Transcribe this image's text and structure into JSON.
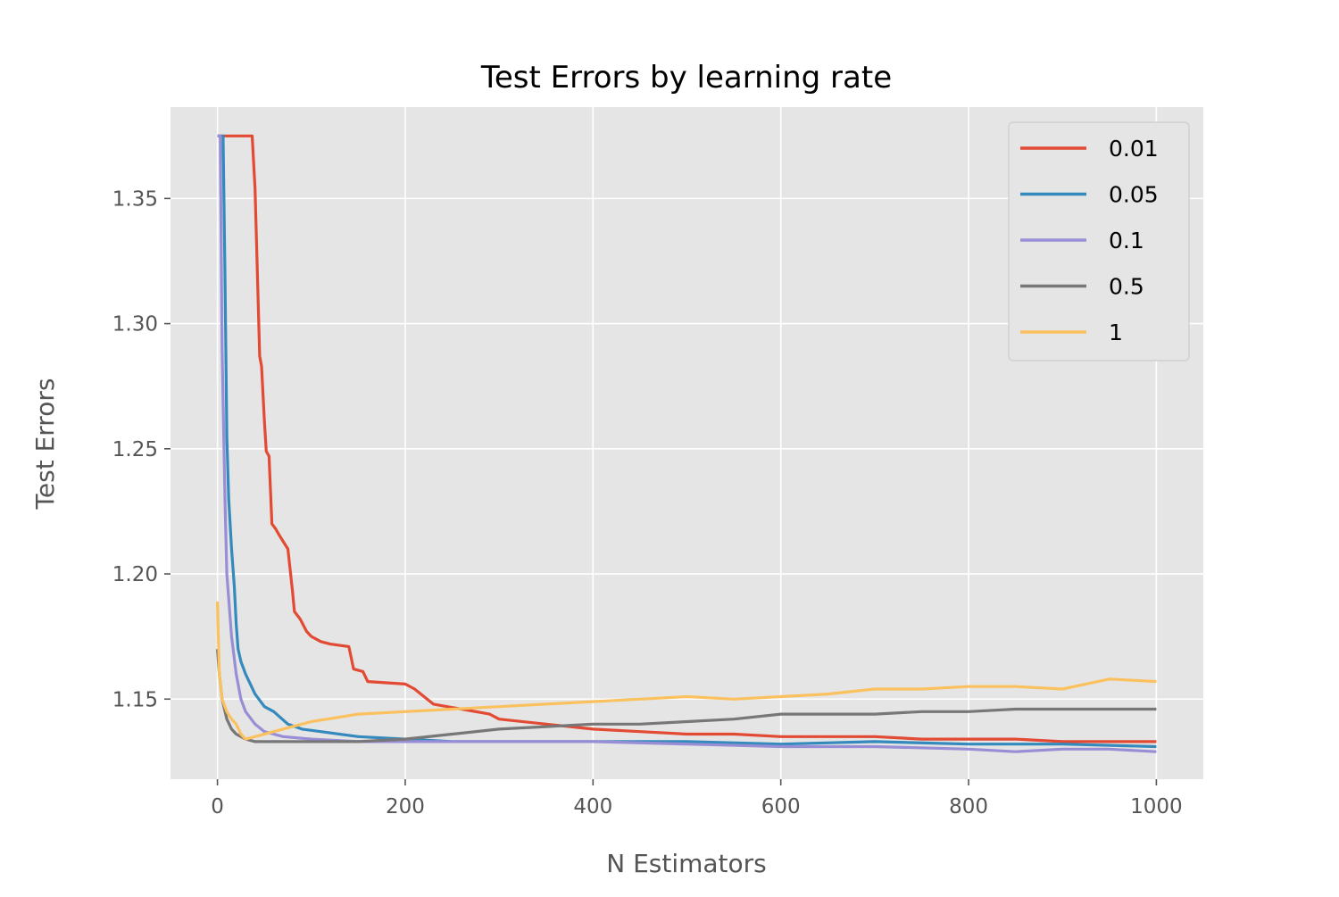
{
  "chart_data": {
    "type": "line",
    "title": "Test Errors by learning rate",
    "xlabel": "N Estimators",
    "ylabel": "Test Errors",
    "xlim": [
      -50,
      1050
    ],
    "ylim": [
      1.118,
      1.3865
    ],
    "xticks": [
      0,
      200,
      400,
      600,
      800,
      1000
    ],
    "xtick_labels": [
      "0",
      "200",
      "400",
      "600",
      "800",
      "1000"
    ],
    "yticks": [
      1.15,
      1.2,
      1.25,
      1.3,
      1.35
    ],
    "ytick_labels": [
      "1.15",
      "1.20",
      "1.25",
      "1.30",
      "1.35"
    ],
    "grid": true,
    "legend_position": "top-right",
    "style": "ggplot",
    "series": [
      {
        "name": "0.01",
        "color": "#E24A33",
        "x": [
          0,
          37,
          40,
          45,
          47,
          50,
          52,
          55,
          58,
          62,
          65,
          70,
          75,
          80,
          82,
          88,
          95,
          100,
          110,
          120,
          140,
          145,
          155,
          160,
          200,
          210,
          220,
          230,
          260,
          290,
          300,
          350,
          400,
          450,
          500,
          550,
          600,
          650,
          700,
          750,
          800,
          850,
          900,
          950,
          1000
        ],
        "y": [
          1.375,
          1.375,
          1.354,
          1.287,
          1.283,
          1.261,
          1.249,
          1.247,
          1.22,
          1.218,
          1.216,
          1.213,
          1.21,
          1.193,
          1.185,
          1.182,
          1.177,
          1.175,
          1.173,
          1.172,
          1.171,
          1.162,
          1.161,
          1.157,
          1.156,
          1.154,
          1.151,
          1.148,
          1.146,
          1.144,
          1.142,
          1.14,
          1.138,
          1.137,
          1.136,
          1.136,
          1.135,
          1.135,
          1.135,
          1.134,
          1.134,
          1.134,
          1.133,
          1.133,
          1.133
        ]
      },
      {
        "name": "0.05",
        "color": "#348ABD",
        "x": [
          0,
          6,
          8,
          10,
          12,
          15,
          18,
          20,
          22,
          25,
          30,
          40,
          50,
          60,
          75,
          90,
          110,
          150,
          200,
          250,
          300,
          400,
          500,
          600,
          700,
          800,
          900,
          1000
        ],
        "y": [
          1.375,
          1.375,
          1.32,
          1.255,
          1.23,
          1.21,
          1.195,
          1.18,
          1.17,
          1.165,
          1.16,
          1.152,
          1.147,
          1.145,
          1.14,
          1.138,
          1.137,
          1.135,
          1.134,
          1.133,
          1.133,
          1.133,
          1.133,
          1.132,
          1.133,
          1.132,
          1.132,
          1.131
        ]
      },
      {
        "name": "0.1",
        "color": "#988ED5",
        "x": [
          0,
          3,
          5,
          8,
          10,
          15,
          20,
          25,
          30,
          40,
          50,
          70,
          100,
          150,
          200,
          300,
          400,
          500,
          600,
          700,
          800,
          850,
          900,
          950,
          1000
        ],
        "y": [
          1.375,
          1.375,
          1.29,
          1.23,
          1.2,
          1.175,
          1.16,
          1.15,
          1.145,
          1.14,
          1.137,
          1.135,
          1.134,
          1.133,
          1.133,
          1.133,
          1.133,
          1.132,
          1.131,
          1.131,
          1.13,
          1.129,
          1.13,
          1.13,
          1.129
        ]
      },
      {
        "name": "0.5",
        "color": "#777777",
        "x": [
          0,
          2,
          5,
          10,
          15,
          20,
          25,
          30,
          40,
          60,
          80,
          100,
          150,
          200,
          250,
          300,
          350,
          400,
          450,
          500,
          550,
          600,
          650,
          700,
          750,
          800,
          850,
          900,
          950,
          1000
        ],
        "y": [
          1.17,
          1.16,
          1.15,
          1.142,
          1.138,
          1.136,
          1.135,
          1.134,
          1.133,
          1.133,
          1.133,
          1.133,
          1.133,
          1.134,
          1.136,
          1.138,
          1.139,
          1.14,
          1.14,
          1.141,
          1.142,
          1.144,
          1.144,
          1.144,
          1.145,
          1.145,
          1.146,
          1.146,
          1.146,
          1.146
        ]
      },
      {
        "name": "1",
        "color": "#FBC15E",
        "x": [
          0,
          2,
          5,
          10,
          15,
          20,
          25,
          30,
          40,
          60,
          80,
          100,
          150,
          200,
          250,
          300,
          350,
          400,
          450,
          500,
          550,
          600,
          650,
          700,
          750,
          800,
          850,
          900,
          950,
          1000
        ],
        "y": [
          1.189,
          1.16,
          1.15,
          1.145,
          1.142,
          1.14,
          1.136,
          1.134,
          1.135,
          1.137,
          1.139,
          1.141,
          1.144,
          1.145,
          1.146,
          1.147,
          1.148,
          1.149,
          1.15,
          1.151,
          1.15,
          1.151,
          1.152,
          1.154,
          1.154,
          1.155,
          1.155,
          1.154,
          1.158,
          1.157
        ]
      }
    ]
  }
}
